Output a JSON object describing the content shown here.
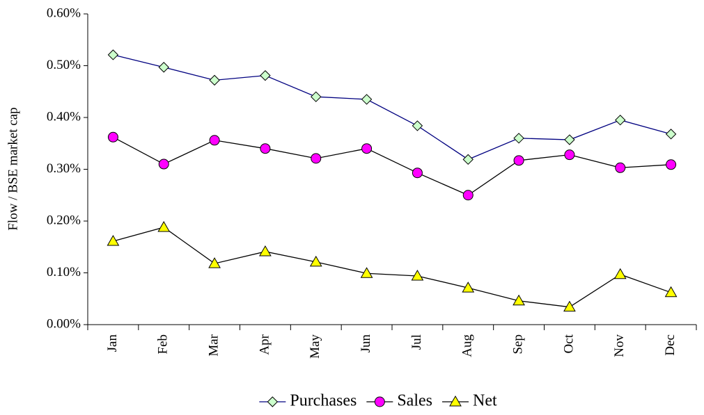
{
  "chart_data": {
    "type": "line",
    "y_label": "Flow / BSE market cap",
    "categories": [
      "Jan",
      "Feb",
      "Mar",
      "Apr",
      "May",
      "Jun",
      "Jul",
      "Aug",
      "Sep",
      "Oct",
      "Nov",
      "Dec"
    ],
    "series": [
      {
        "name": "Purchases",
        "color": "#000080",
        "marker": "diamond",
        "marker_color": "#ccffcc",
        "values": [
          0.521,
          0.497,
          0.472,
          0.481,
          0.44,
          0.435,
          0.384,
          0.319,
          0.36,
          0.357,
          0.395,
          0.368
        ]
      },
      {
        "name": "Sales",
        "color": "#000000",
        "marker": "circle",
        "marker_color": "#ff00ff",
        "values": [
          0.362,
          0.31,
          0.356,
          0.34,
          0.321,
          0.34,
          0.293,
          0.25,
          0.317,
          0.328,
          0.303,
          0.309
        ]
      },
      {
        "name": "Net",
        "color": "#000000",
        "marker": "triangle",
        "marker_color": "#ffff00",
        "values": [
          0.161,
          0.188,
          0.118,
          0.141,
          0.121,
          0.099,
          0.094,
          0.071,
          0.046,
          0.034,
          0.097,
          0.062
        ]
      }
    ],
    "ylim": [
      0,
      0.6
    ],
    "yticks": [
      {
        "value": 0,
        "label": "0.00%"
      },
      {
        "value": 0.1,
        "label": "0.10%"
      },
      {
        "value": 0.2,
        "label": "0.20%"
      },
      {
        "value": 0.3,
        "label": "0.30%"
      },
      {
        "value": 0.4,
        "label": "0.40%"
      },
      {
        "value": 0.5,
        "label": "0.50%"
      },
      {
        "value": 0.6,
        "label": "0.60%"
      }
    ],
    "grid": false,
    "legend": "bottom"
  }
}
